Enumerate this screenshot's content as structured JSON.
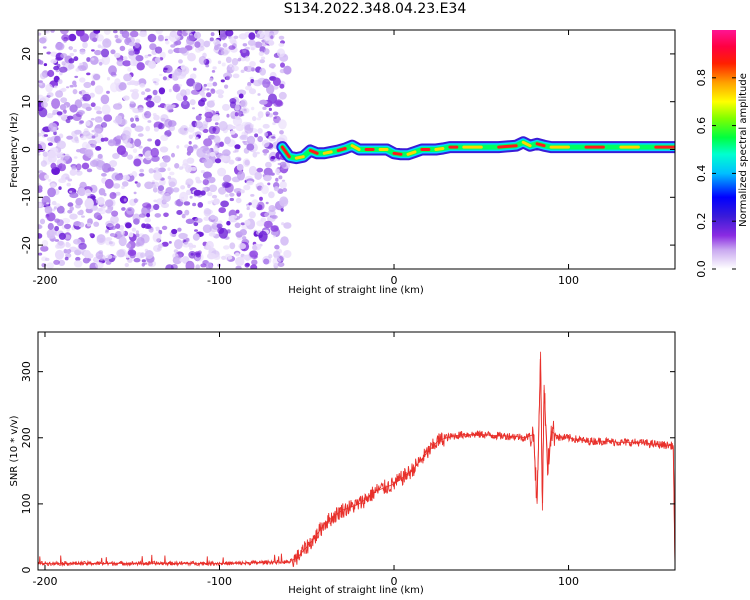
{
  "title": "S134.2022.348.04.23.E34",
  "chart_data": [
    {
      "type": "heatmap",
      "xlabel": "Height of straight line (km)",
      "ylabel": "Frequency (Hz)",
      "xlim": [
        -204,
        161
      ],
      "ylim": [
        -25,
        25
      ],
      "xticks": [
        -200,
        -100,
        0,
        100
      ],
      "yticks": [
        -20,
        -10,
        0,
        10,
        20
      ],
      "noise_region_x": [
        -204,
        -61
      ],
      "signal_ridge": {
        "x": [
          -64,
          -60,
          -56,
          -52,
          -48,
          -44,
          -40,
          -36,
          -32,
          -28,
          -24,
          -20,
          -16,
          -12,
          -8,
          -4,
          0,
          4,
          8,
          12,
          16,
          20,
          24,
          28,
          32,
          36,
          40,
          50,
          60,
          70,
          74,
          78,
          82,
          86,
          90,
          100,
          110,
          120,
          130,
          140,
          150,
          161
        ],
        "frequency_hz": [
          0.5,
          -1.5,
          -1.8,
          -1.5,
          -0.2,
          -0.8,
          -0.8,
          -0.5,
          -0.2,
          0.2,
          0.8,
          0,
          0,
          0,
          0,
          0,
          -0.8,
          -1.0,
          -1.0,
          -0.5,
          0,
          0,
          0,
          0.2,
          0.5,
          0.5,
          0.5,
          0.5,
          0.5,
          0.8,
          1.5,
          0.8,
          1.2,
          0.8,
          0.5,
          0.5,
          0.5,
          0.5,
          0.5,
          0.5,
          0.5,
          0.5
        ]
      },
      "colorbar": {
        "label": "Normalized spectral amplitude",
        "range": [
          0,
          1
        ],
        "ticks": [
          "0.0",
          "0.2",
          "0.4",
          "0.6",
          "0.8"
        ],
        "colors": [
          "#ffffff",
          "#8a2be2",
          "#0000ff",
          "#00ffff",
          "#00ff00",
          "#ffff00",
          "#ff8c00",
          "#ff0000",
          "#ff1493"
        ]
      }
    },
    {
      "type": "line",
      "xlabel": "Height of straight line (km)",
      "ylabel": "SNR (10 * v/v)",
      "xlim": [
        -204,
        161
      ],
      "ylim": [
        0,
        360
      ],
      "xticks": [
        -200,
        -100,
        0,
        100
      ],
      "yticks": [
        0,
        100,
        200,
        300
      ],
      "color": "#e8302b",
      "x": [
        -204,
        -180,
        -150,
        -120,
        -90,
        -70,
        -60,
        -55,
        -50,
        -45,
        -40,
        -35,
        -30,
        -25,
        -20,
        -15,
        -10,
        -5,
        0,
        5,
        10,
        15,
        20,
        25,
        30,
        35,
        40,
        50,
        60,
        70,
        75,
        80,
        82,
        84,
        85,
        86,
        88,
        90,
        95,
        100,
        110,
        120,
        130,
        140,
        150,
        160,
        161
      ],
      "y": [
        10,
        10,
        10,
        10,
        10,
        12,
        12,
        20,
        35,
        50,
        70,
        80,
        90,
        95,
        100,
        110,
        120,
        125,
        130,
        140,
        150,
        165,
        180,
        195,
        200,
        203,
        205,
        205,
        203,
        202,
        200,
        205,
        100,
        330,
        90,
        280,
        150,
        210,
        200,
        200,
        195,
        195,
        193,
        193,
        190,
        188,
        5
      ]
    }
  ]
}
